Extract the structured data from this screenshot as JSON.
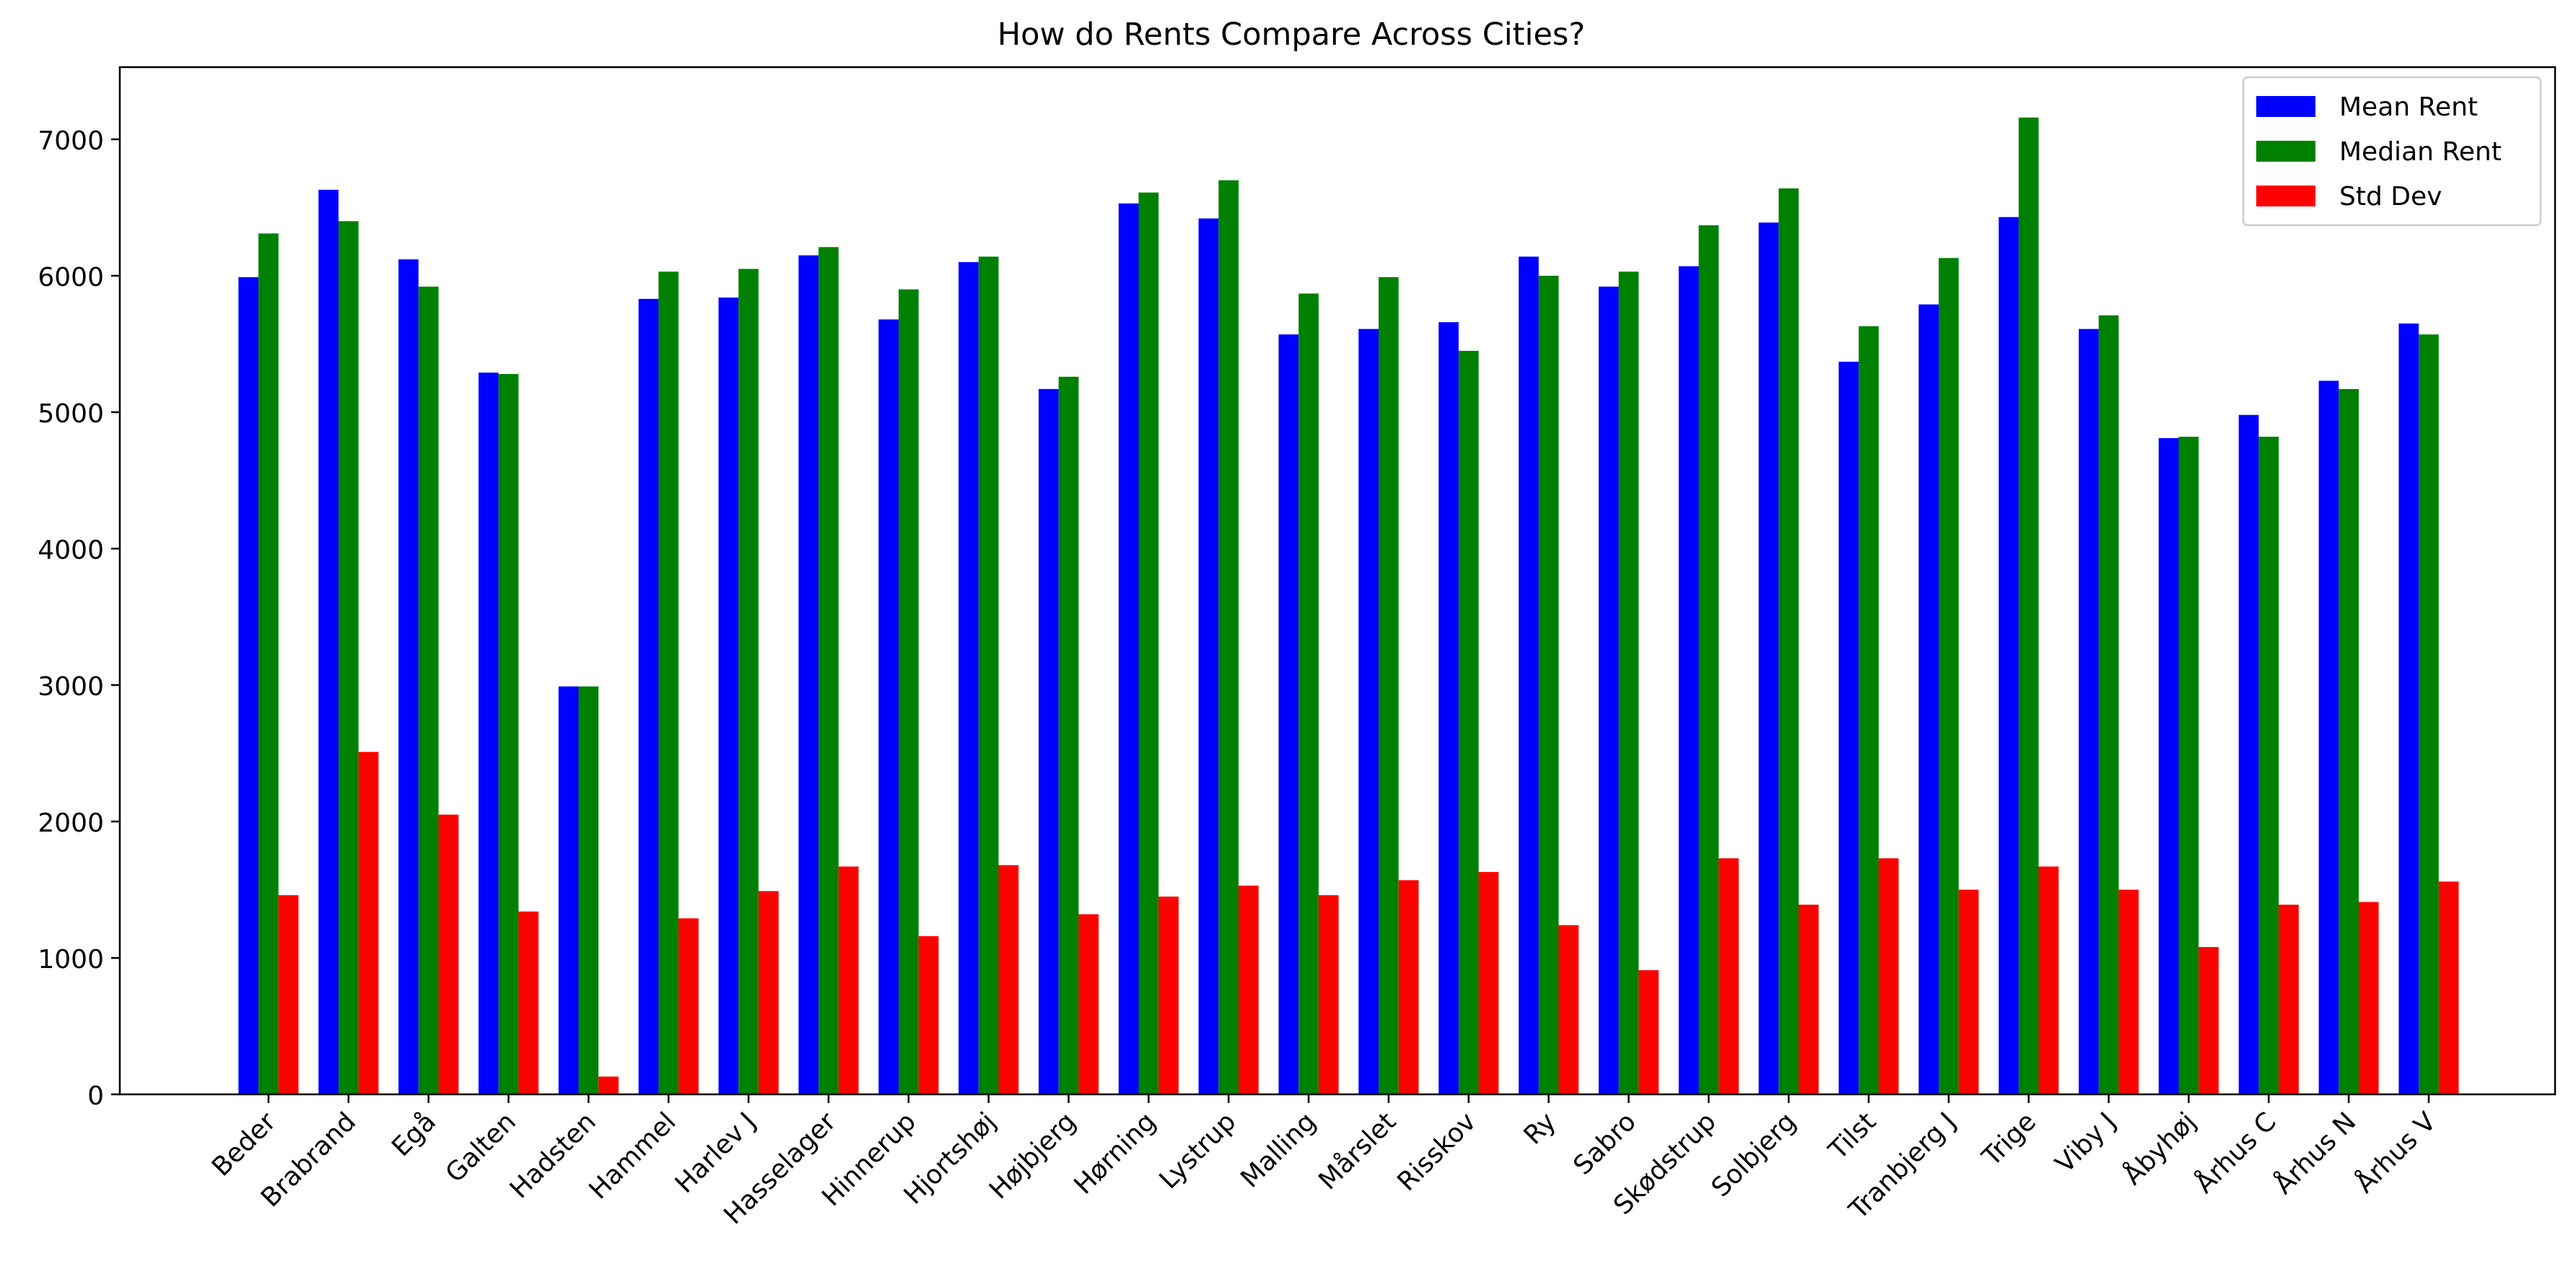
{
  "chart_data": {
    "type": "bar",
    "title": "How do Rents Compare Across Cities?",
    "xlabel": "",
    "ylabel": "",
    "ylim": [
      0,
      7500
    ],
    "yticks": [
      0,
      1000,
      2000,
      3000,
      4000,
      5000,
      6000,
      7000
    ],
    "grid": false,
    "legend_position": "top-right",
    "categories": [
      "Beder",
      "Brabrand",
      "Egå",
      "Galten",
      "Hadsten",
      "Hammel",
      "Harlev J",
      "Hasselager",
      "Hinnerup",
      "Hjortshøj",
      "Højbjerg",
      "Hørning",
      "Lystrup",
      "Malling",
      "Mårslet",
      "Risskov",
      "Ry",
      "Sabro",
      "Skødstrup",
      "Solbjerg",
      "Tilst",
      "Tranbjerg J",
      "Trige",
      "Viby J",
      "Åbyhøj",
      "Århus C",
      "Århus N",
      "Århus V"
    ],
    "series": [
      {
        "name": "Mean Rent",
        "color": "#0000ff",
        "values": [
          5990,
          6630,
          6120,
          5290,
          2990,
          5830,
          5840,
          6150,
          5680,
          6100,
          5170,
          6530,
          6420,
          5570,
          5610,
          5660,
          6140,
          5920,
          6070,
          6390,
          5370,
          5790,
          6430,
          5610,
          4810,
          4980,
          5230,
          5650
        ]
      },
      {
        "name": "Median Rent",
        "color": "#008000",
        "values": [
          6310,
          6400,
          5920,
          5280,
          2990,
          6030,
          6050,
          6210,
          5900,
          6140,
          5260,
          6610,
          6700,
          5870,
          5990,
          5450,
          6000,
          6030,
          6370,
          6640,
          5630,
          6130,
          7160,
          5710,
          4820,
          4820,
          5170,
          5570
        ]
      },
      {
        "name": "Std Dev",
        "color": "#ff0000",
        "values": [
          1460,
          2510,
          2050,
          1340,
          130,
          1290,
          1490,
          1670,
          1160,
          1680,
          1320,
          1450,
          1530,
          1460,
          1570,
          1630,
          1240,
          910,
          1730,
          1390,
          1730,
          1500,
          1670,
          1500,
          1080,
          1390,
          1410,
          1560
        ]
      }
    ]
  }
}
